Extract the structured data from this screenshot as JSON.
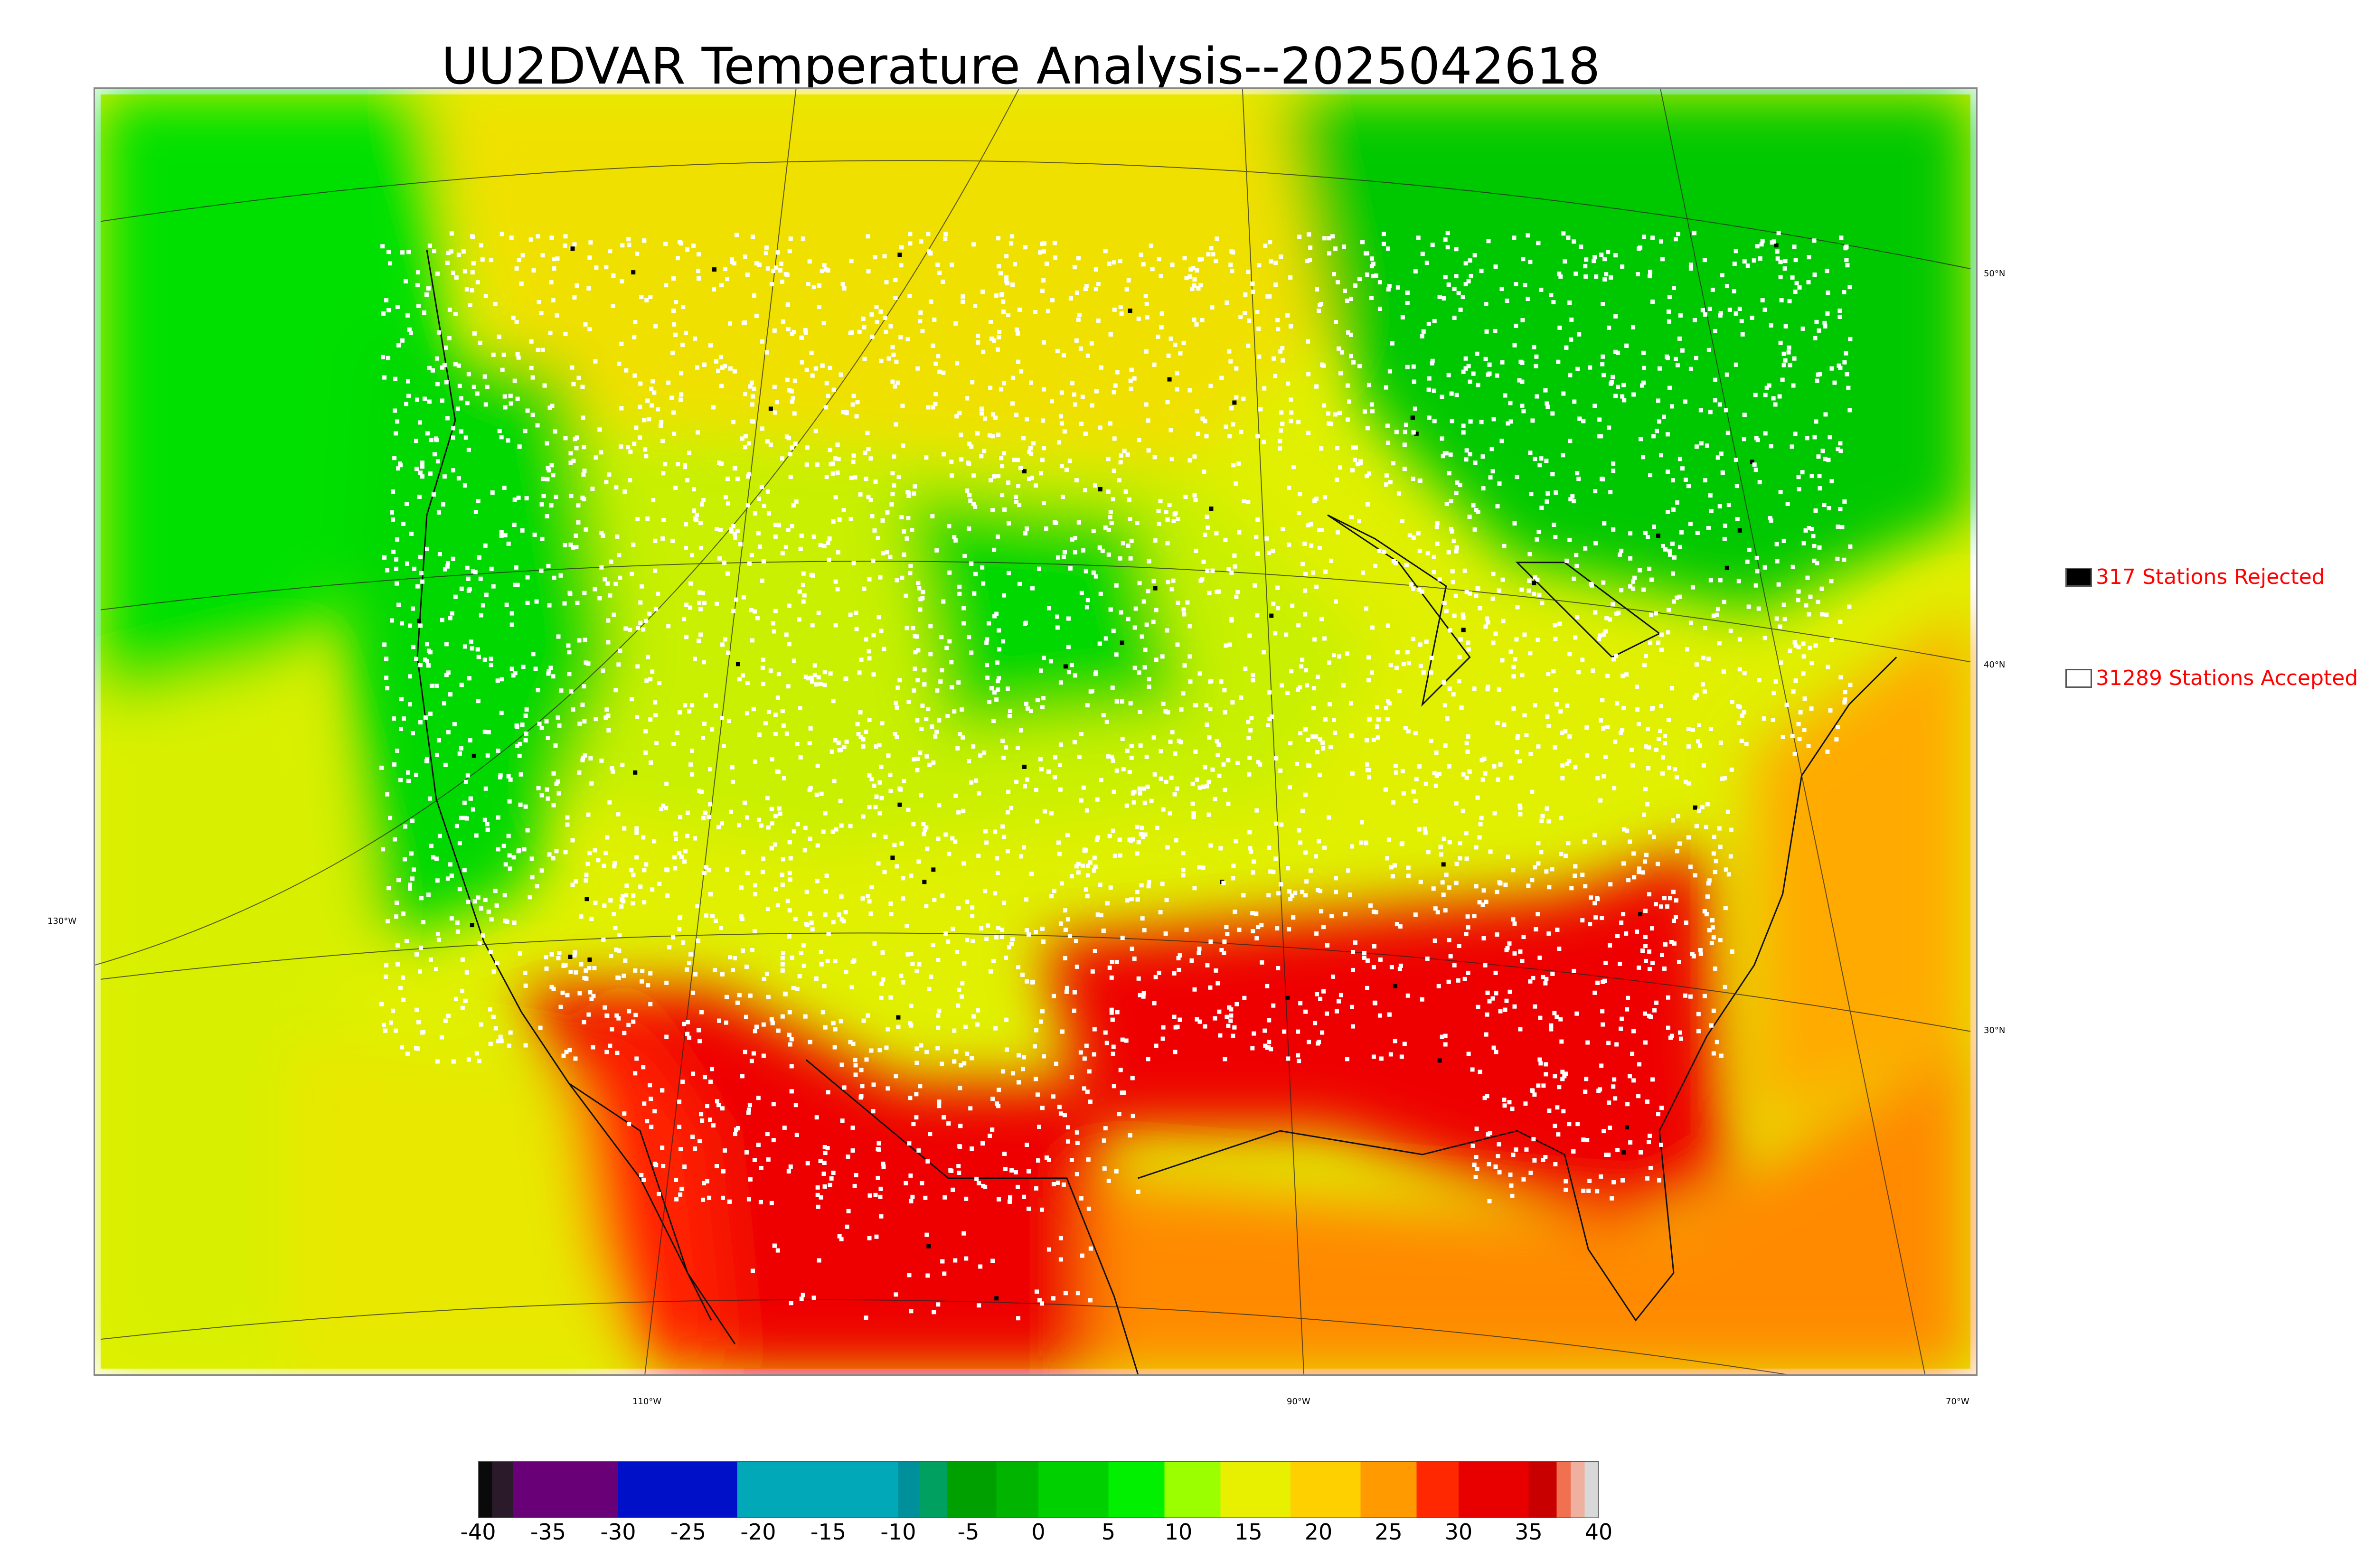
{
  "title": "UU2DVAR Temperature Analysis--2025042618",
  "grid_labels": {
    "lat_50": "50°N",
    "lat_40": "40°N",
    "lat_30": "30°N",
    "lon_130": "130°W",
    "lon_110": "110°W",
    "lon_90": "90°W",
    "lon_70": "70°W"
  },
  "legend": {
    "rejected": {
      "label": "317 Stations Rejected",
      "swatch_color": "#000000"
    },
    "accepted": {
      "label": "31289 Stations Accepted",
      "swatch_color": "#ffffff"
    }
  },
  "colorbar": {
    "ticks": [
      "-40",
      "-35",
      "-30",
      "-25",
      "-20",
      "-15",
      "-10",
      "-5",
      "0",
      "5",
      "10",
      "15",
      "20",
      "25",
      "30",
      "35",
      "40"
    ],
    "range": [
      -40,
      40
    ],
    "stops": [
      {
        "from": -40,
        "to": -39,
        "color": "#0a0a0a"
      },
      {
        "from": -39,
        "to": -37.5,
        "color": "#2a1a2a"
      },
      {
        "from": -37.5,
        "to": -30,
        "color": "#6a0078"
      },
      {
        "from": -30,
        "to": -21.5,
        "color": "#0010c8"
      },
      {
        "from": -21.5,
        "to": -10,
        "color": "#00a8b8"
      },
      {
        "from": -10,
        "to": -8.5,
        "color": "#00909c"
      },
      {
        "from": -8.5,
        "to": -6.5,
        "color": "#00a060"
      },
      {
        "from": -6.5,
        "to": -3,
        "color": "#00a000"
      },
      {
        "from": -3,
        "to": 0,
        "color": "#00b400"
      },
      {
        "from": 0,
        "to": 5,
        "color": "#00d000"
      },
      {
        "from": 5,
        "to": 9,
        "color": "#00f000"
      },
      {
        "from": 9,
        "to": 13,
        "color": "#9cff00"
      },
      {
        "from": 13,
        "to": 18,
        "color": "#e8f000"
      },
      {
        "from": 18,
        "to": 23,
        "color": "#ffd000"
      },
      {
        "from": 23,
        "to": 27,
        "color": "#ff9a00"
      },
      {
        "from": 27,
        "to": 30,
        "color": "#ff2800"
      },
      {
        "from": 30,
        "to": 35,
        "color": "#e80000"
      },
      {
        "from": 35,
        "to": 37,
        "color": "#c80000"
      },
      {
        "from": 37,
        "to": 38,
        "color": "#f07050"
      },
      {
        "from": 38,
        "to": 39,
        "color": "#f0b0a0"
      },
      {
        "from": 39,
        "to": 40,
        "color": "#d8d8d8"
      }
    ]
  },
  "colors": {
    "ocean_west": "#a8f000",
    "canada_north": "#00d000",
    "gulf": "#ff8a00",
    "south_hot": "#ee0000",
    "mid": "#e6f200",
    "rockies": "#00e000"
  }
}
